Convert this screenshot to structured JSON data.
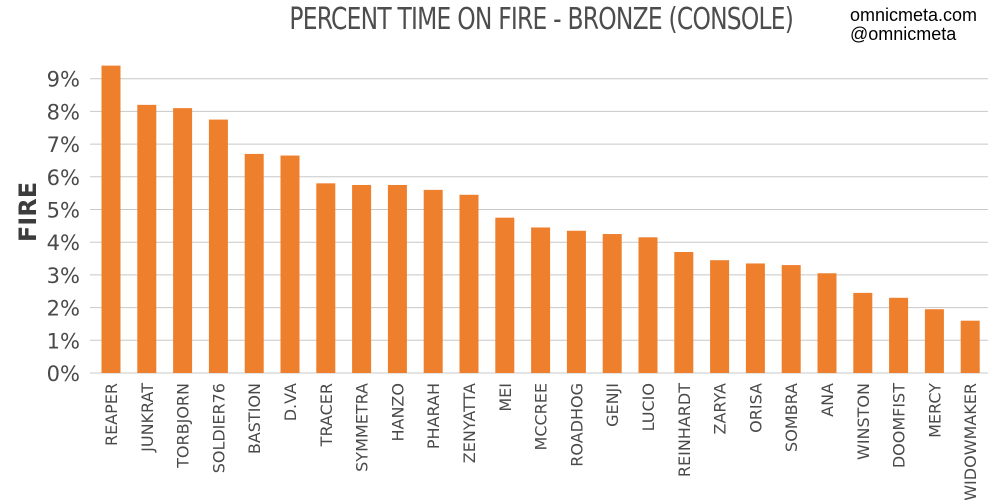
{
  "credits": {
    "site": "omnicmeta.com",
    "handle": "@omnicmeta"
  },
  "colors": {
    "bar": "#ee7f2d",
    "grid": "#c8c8c8",
    "text": "#4a4a4a"
  },
  "chart_data": {
    "type": "bar",
    "title": "PERCENT TIME ON FIRE - BRONZE (CONSOLE)",
    "xlabel": "",
    "ylabel": "FIRE",
    "ylim": [
      0,
      9.8
    ],
    "yticks": [
      0,
      1,
      2,
      3,
      4,
      5,
      6,
      7,
      8,
      9
    ],
    "ytick_labels": [
      "0%",
      "1%",
      "2%",
      "3%",
      "4%",
      "5%",
      "6%",
      "7%",
      "8%",
      "9%"
    ],
    "grid": true,
    "legend": "none",
    "categories": [
      "REAPER",
      "JUNKRAT",
      "TORBJORN",
      "SOLDIER76",
      "BASTION",
      "D.VA",
      "TRACER",
      "SYMMETRA",
      "HANZO",
      "PHARAH",
      "ZENYATTA",
      "MEI",
      "MCCREE",
      "ROADHOG",
      "GENJI",
      "LUCIO",
      "REINHARDT",
      "ZARYA",
      "ORISA",
      "SOMBRA",
      "ANA",
      "WINSTON",
      "DOOMFIST",
      "MERCY",
      "WIDOWMAKER"
    ],
    "values": [
      9.4,
      8.2,
      8.1,
      7.75,
      6.7,
      6.65,
      5.8,
      5.75,
      5.75,
      5.6,
      5.45,
      4.75,
      4.45,
      4.35,
      4.25,
      4.15,
      3.7,
      3.45,
      3.35,
      3.3,
      3.05,
      2.45,
      2.3,
      1.95,
      1.6
    ]
  }
}
